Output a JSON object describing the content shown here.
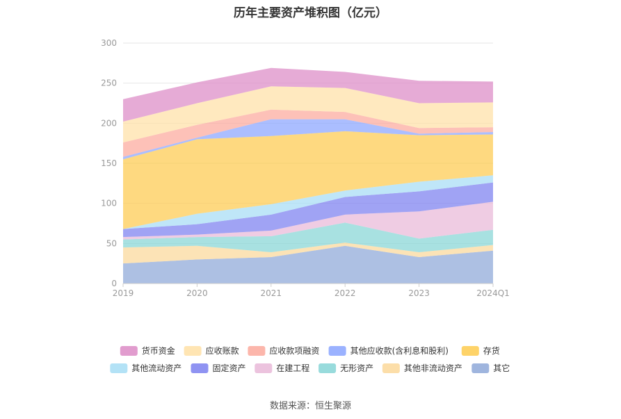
{
  "chart_data": {
    "type": "area",
    "stacked": true,
    "title": "历年主要资产堆积图（亿元）",
    "source": "数据来源：恒生聚源",
    "x": [
      "2019",
      "2020",
      "2021",
      "2022",
      "2023",
      "2024Q1"
    ],
    "ylim": [
      0,
      300
    ],
    "yticks": [
      0,
      50,
      100,
      150,
      200,
      250,
      300
    ],
    "grid": true,
    "legend_position": "bottom",
    "series": [
      {
        "name": "其它",
        "color": "#8ea8d8",
        "values": [
          25,
          30,
          33,
          47,
          33,
          41
        ]
      },
      {
        "name": "其他非流动资产",
        "color": "#fbd89a",
        "values": [
          20,
          17,
          6,
          4,
          6,
          7
        ]
      },
      {
        "name": "无形资产",
        "color": "#86d5d6",
        "values": [
          10,
          11,
          20,
          25,
          17,
          19
        ]
      },
      {
        "name": "在建工程",
        "color": "#e9b9d8",
        "values": [
          3,
          3,
          7,
          10,
          34,
          35
        ]
      },
      {
        "name": "固定资产",
        "color": "#7b80f0",
        "values": [
          10,
          13,
          20,
          22,
          25,
          24
        ]
      },
      {
        "name": "其他流动资产",
        "color": "#a6ddf5",
        "values": [
          0,
          13,
          13,
          8,
          12,
          9
        ]
      },
      {
        "name": "存货",
        "color": "#fecb4f",
        "values": [
          87,
          93,
          85,
          74,
          58,
          51
        ]
      },
      {
        "name": "其他应收款(含利息和股利)",
        "color": "#8aa5ff",
        "values": [
          3,
          2,
          21,
          15,
          2,
          3
        ]
      },
      {
        "name": "应收款项融资",
        "color": "#fca99c",
        "values": [
          18,
          16,
          12,
          9,
          7,
          6
        ]
      },
      {
        "name": "应收账款",
        "color": "#ffe0a6",
        "values": [
          26,
          27,
          29,
          30,
          31,
          31
        ]
      },
      {
        "name": "货币资金",
        "color": "#dc8bc6",
        "values": [
          28,
          26,
          23,
          20,
          28,
          26
        ]
      }
    ],
    "legend_order": [
      "货币资金",
      "应收账款",
      "应收款项融资",
      "其他应收款(含利息和股利)",
      "存货",
      "其他流动资产",
      "固定资产",
      "在建工程",
      "无形资产",
      "其他非流动资产",
      "其它"
    ]
  }
}
